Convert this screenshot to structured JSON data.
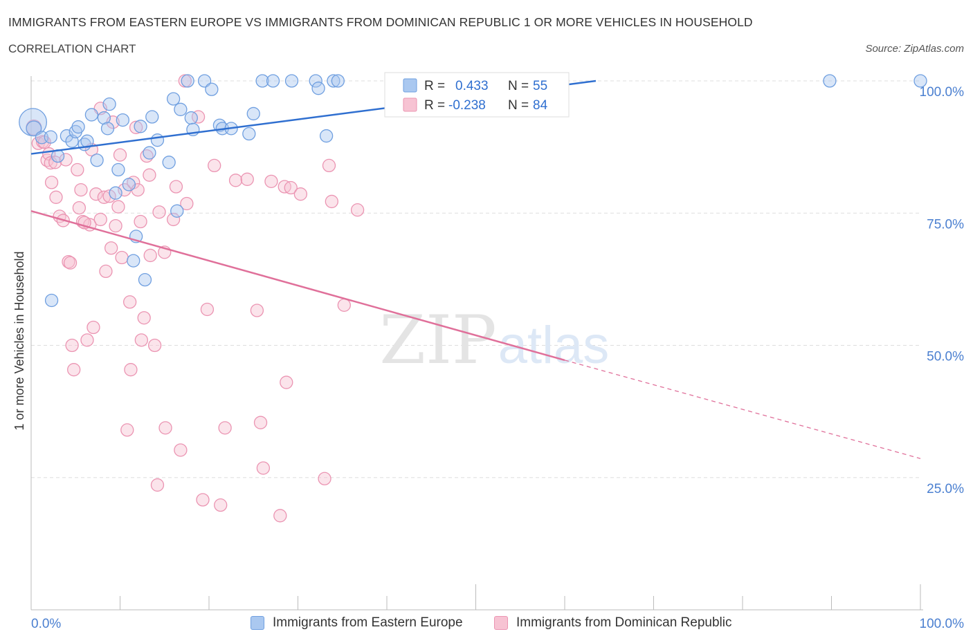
{
  "header": {
    "title": "IMMIGRANTS FROM EASTERN EUROPE VS IMMIGRANTS FROM DOMINICAN REPUBLIC 1 OR MORE VEHICLES IN HOUSEHOLD",
    "subtitle": "CORRELATION CHART",
    "source": "Source: ZipAtlas.com"
  },
  "watermark": {
    "zip": "ZIP",
    "atlas": "atlas"
  },
  "legend_box": {
    "blue": {
      "r_label": "R =",
      "r_value": "0.433",
      "n_label": "N =",
      "n_value": "55"
    },
    "pink": {
      "r_label": "R =",
      "r_value": "-0.238",
      "n_label": "N =",
      "n_value": "84"
    }
  },
  "bottom_legend": {
    "blue_label": "Immigrants from Eastern Europe",
    "pink_label": "Immigrants from Dominican Republic"
  },
  "colors": {
    "blue_fill": "#aac8f0",
    "blue_stroke": "#6f9fe0",
    "blue_line": "#2f6fd0",
    "pink_fill": "#f7c3d3",
    "pink_stroke": "#eb94b2",
    "pink_line": "#e0709a",
    "axis_text": "#4a7fd0",
    "grid": "#dddddd"
  },
  "chart_data": {
    "type": "scatter",
    "ylabel": "1 or more Vehicles in Household",
    "xlim": [
      0,
      100
    ],
    "ylim": [
      0,
      100
    ],
    "x_tick_labels": [
      "0.0%",
      "100.0%"
    ],
    "y_ticks": [
      25,
      50,
      75,
      100
    ],
    "y_tick_labels": [
      "25.0%",
      "50.0%",
      "75.0%",
      "100.0%"
    ],
    "grid": true,
    "series": [
      {
        "name": "Immigrants from Eastern Europe",
        "color": "#6f9fe0",
        "trend": {
          "x": [
            0,
            63.5
          ],
          "y": [
            86.2,
            100
          ]
        },
        "points": [
          [
            0.2,
            92.2,
            2.2
          ],
          [
            0.3,
            91.0,
            1.2
          ],
          [
            1.2,
            89.3,
            1.0
          ],
          [
            2.2,
            89.4,
            1
          ],
          [
            3.0,
            85.8,
            1
          ],
          [
            2.3,
            58.5,
            1
          ],
          [
            4.0,
            89.6,
            1
          ],
          [
            4.6,
            88.6,
            1
          ],
          [
            5.0,
            90.4,
            1
          ],
          [
            5.3,
            91.3,
            1
          ],
          [
            6.0,
            88.0,
            1
          ],
          [
            6.3,
            88.6,
            1
          ],
          [
            6.8,
            93.6,
            1
          ],
          [
            7.4,
            85.0,
            1
          ],
          [
            8.2,
            93.0,
            1
          ],
          [
            8.6,
            91.0,
            1
          ],
          [
            8.8,
            95.6,
            1
          ],
          [
            9.5,
            78.8,
            1
          ],
          [
            9.8,
            83.2,
            1
          ],
          [
            10.3,
            92.6,
            1
          ],
          [
            11.0,
            80.4,
            1
          ],
          [
            11.8,
            70.6,
            1
          ],
          [
            12.3,
            91.4,
            1
          ],
          [
            11.5,
            66.0,
            1
          ],
          [
            12.8,
            62.4,
            1
          ],
          [
            13.3,
            86.4,
            1
          ],
          [
            13.6,
            93.2,
            1
          ],
          [
            14.2,
            88.8,
            1
          ],
          [
            15.5,
            84.6,
            1
          ],
          [
            16.0,
            96.6,
            1
          ],
          [
            16.4,
            75.4,
            1
          ],
          [
            16.8,
            94.6,
            1
          ],
          [
            18.0,
            93.0,
            1
          ],
          [
            18.2,
            90.8,
            1
          ],
          [
            17.6,
            100,
            1
          ],
          [
            19.5,
            100,
            1
          ],
          [
            20.3,
            98.4,
            1
          ],
          [
            21.2,
            91.6,
            1
          ],
          [
            21.5,
            91.0,
            1
          ],
          [
            22.5,
            91.0,
            1
          ],
          [
            24.5,
            90.0,
            1
          ],
          [
            25.0,
            93.8,
            1
          ],
          [
            26.0,
            100,
            1
          ],
          [
            27.2,
            100,
            1
          ],
          [
            29.3,
            100,
            1
          ],
          [
            32.0,
            100,
            1
          ],
          [
            32.3,
            98.6,
            1
          ],
          [
            33.2,
            89.6,
            1
          ],
          [
            34.0,
            100,
            1
          ],
          [
            34.5,
            100,
            1
          ],
          [
            46.2,
            100,
            1
          ],
          [
            47.4,
            100,
            1
          ],
          [
            58.5,
            100,
            1
          ],
          [
            89.8,
            100,
            1
          ],
          [
            100.0,
            100,
            1
          ]
        ]
      },
      {
        "name": "Immigrants from Dominican Republic",
        "color": "#eb94b2",
        "trend": {
          "x": [
            0,
            60
          ],
          "y": [
            75.4,
            47.2
          ]
        },
        "trend_extension": {
          "x": [
            60,
            100
          ],
          "y": [
            47.2,
            28.6
          ]
        },
        "points": [
          [
            0.3,
            91.2,
            1.2
          ],
          [
            0.8,
            88.2,
            1
          ],
          [
            1.3,
            88.5,
            1
          ],
          [
            1.8,
            85.0,
            1
          ],
          [
            2.0,
            86.2,
            1
          ],
          [
            2.2,
            84.5,
            1
          ],
          [
            2.3,
            80.8,
            1
          ],
          [
            2.7,
            84.6,
            1
          ],
          [
            2.8,
            78.0,
            1
          ],
          [
            3.2,
            74.4,
            1
          ],
          [
            3.6,
            73.6,
            1
          ],
          [
            3.9,
            85.1,
            1
          ],
          [
            4.2,
            65.8,
            1
          ],
          [
            4.4,
            65.6,
            1
          ],
          [
            4.6,
            50.0,
            1
          ],
          [
            4.8,
            45.4,
            1
          ],
          [
            5.2,
            83.2,
            1
          ],
          [
            5.4,
            76.0,
            1
          ],
          [
            5.6,
            79.4,
            1
          ],
          [
            5.8,
            73.4,
            1
          ],
          [
            6.3,
            51.0,
            1
          ],
          [
            6.6,
            72.8,
            1
          ],
          [
            6.8,
            87.0,
            1
          ],
          [
            7.0,
            53.4,
            1
          ],
          [
            7.3,
            78.6,
            1
          ],
          [
            7.8,
            94.8,
            1
          ],
          [
            7.8,
            73.8,
            1
          ],
          [
            8.2,
            78.0,
            1
          ],
          [
            8.4,
            64.0,
            1
          ],
          [
            8.8,
            78.2,
            1
          ],
          [
            9.0,
            68.4,
            1
          ],
          [
            9.2,
            92.2,
            1
          ],
          [
            9.5,
            72.6,
            1
          ],
          [
            9.8,
            76.2,
            1
          ],
          [
            10.0,
            86.0,
            1
          ],
          [
            10.2,
            66.6,
            1
          ],
          [
            10.5,
            79.4,
            1
          ],
          [
            10.8,
            34.0,
            1
          ],
          [
            11.1,
            58.2,
            1
          ],
          [
            11.2,
            45.4,
            1
          ],
          [
            11.5,
            80.8,
            1
          ],
          [
            11.8,
            91.2,
            1
          ],
          [
            12.0,
            79.4,
            1
          ],
          [
            12.3,
            73.4,
            1
          ],
          [
            12.4,
            51.0,
            1
          ],
          [
            12.7,
            55.2,
            1
          ],
          [
            13.0,
            85.8,
            1
          ],
          [
            13.3,
            82.2,
            1
          ],
          [
            13.4,
            67.0,
            1
          ],
          [
            13.9,
            50.0,
            1
          ],
          [
            14.2,
            23.6,
            1
          ],
          [
            14.4,
            75.2,
            1
          ],
          [
            15.0,
            67.6,
            1
          ],
          [
            15.1,
            34.4,
            1
          ],
          [
            16.0,
            73.8,
            1
          ],
          [
            16.3,
            80.0,
            1
          ],
          [
            16.8,
            30.2,
            1
          ],
          [
            17.5,
            76.8,
            1
          ],
          [
            17.3,
            100,
            1
          ],
          [
            18.8,
            93.2,
            1
          ],
          [
            19.3,
            20.8,
            1
          ],
          [
            19.8,
            56.8,
            1
          ],
          [
            20.6,
            84.0,
            1
          ],
          [
            21.3,
            19.8,
            1
          ],
          [
            21.8,
            34.4,
            1
          ],
          [
            23.0,
            81.2,
            1
          ],
          [
            24.3,
            81.4,
            1
          ],
          [
            25.4,
            56.6,
            1
          ],
          [
            25.8,
            35.4,
            1
          ],
          [
            26.1,
            26.8,
            1
          ],
          [
            27.0,
            81.0,
            1
          ],
          [
            28.0,
            17.8,
            1
          ],
          [
            28.5,
            80.0,
            1
          ],
          [
            28.7,
            43.0,
            1
          ],
          [
            29.2,
            79.8,
            1
          ],
          [
            30.3,
            78.6,
            1
          ],
          [
            33.0,
            24.8,
            1
          ],
          [
            33.5,
            84.0,
            1
          ],
          [
            33.8,
            77.2,
            1
          ],
          [
            35.2,
            57.6,
            1
          ],
          [
            36.7,
            75.6,
            1
          ],
          [
            47.2,
            100,
            1
          ],
          [
            1.5,
            88.4,
            1
          ],
          [
            6.0,
            73.2,
            1
          ]
        ]
      }
    ]
  }
}
